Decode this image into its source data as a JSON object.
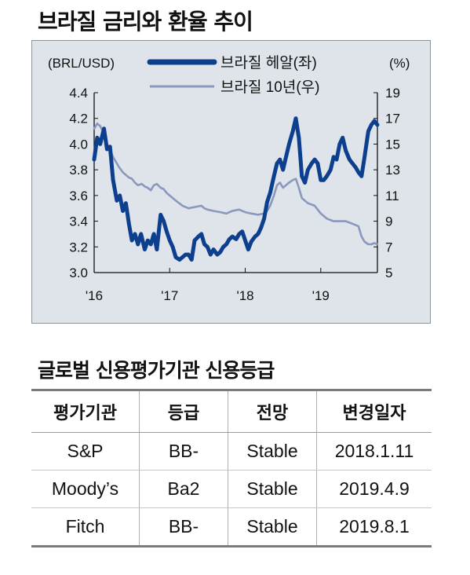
{
  "title": "브라질 금리와 환율 추이",
  "chart_data": {
    "type": "line",
    "left_axis_unit": "(BRL/USD)",
    "right_axis_unit": "(%)",
    "y_left_ticks": [
      "4.4",
      "4.2",
      "4.0",
      "3.8",
      "3.6",
      "3.4",
      "3.2",
      "3.0"
    ],
    "y_right_ticks": [
      "19",
      "17",
      "15",
      "13",
      "11",
      "9",
      "7",
      "5"
    ],
    "x_ticks": [
      "'16",
      "'17",
      "'18",
      "'19"
    ],
    "ylim_left": [
      3.0,
      4.4
    ],
    "ylim_right": [
      5,
      19
    ],
    "xlim": [
      2016.0,
      2019.75
    ],
    "series": [
      {
        "name": "브라질 헤알(좌)",
        "axis": "left",
        "color": "#0d3f8f",
        "points": [
          [
            2016.0,
            3.88
          ],
          [
            2016.04,
            4.05
          ],
          [
            2016.08,
            4.0
          ],
          [
            2016.13,
            4.12
          ],
          [
            2016.17,
            3.96
          ],
          [
            2016.21,
            3.98
          ],
          [
            2016.25,
            3.72
          ],
          [
            2016.3,
            3.56
          ],
          [
            2016.34,
            3.6
          ],
          [
            2016.38,
            3.48
          ],
          [
            2016.42,
            3.54
          ],
          [
            2016.46,
            3.38
          ],
          [
            2016.5,
            3.25
          ],
          [
            2016.54,
            3.3
          ],
          [
            2016.58,
            3.22
          ],
          [
            2016.62,
            3.3
          ],
          [
            2016.67,
            3.18
          ],
          [
            2016.71,
            3.25
          ],
          [
            2016.75,
            3.22
          ],
          [
            2016.79,
            3.3
          ],
          [
            2016.83,
            3.18
          ],
          [
            2016.88,
            3.45
          ],
          [
            2016.92,
            3.4
          ],
          [
            2016.96,
            3.32
          ],
          [
            2017.0,
            3.25
          ],
          [
            2017.04,
            3.2
          ],
          [
            2017.08,
            3.12
          ],
          [
            2017.13,
            3.1
          ],
          [
            2017.17,
            3.12
          ],
          [
            2017.21,
            3.14
          ],
          [
            2017.25,
            3.14
          ],
          [
            2017.29,
            3.1
          ],
          [
            2017.33,
            3.25
          ],
          [
            2017.38,
            3.28
          ],
          [
            2017.42,
            3.3
          ],
          [
            2017.46,
            3.22
          ],
          [
            2017.5,
            3.2
          ],
          [
            2017.54,
            3.14
          ],
          [
            2017.58,
            3.18
          ],
          [
            2017.63,
            3.14
          ],
          [
            2017.67,
            3.16
          ],
          [
            2017.71,
            3.2
          ],
          [
            2017.75,
            3.22
          ],
          [
            2017.79,
            3.26
          ],
          [
            2017.83,
            3.28
          ],
          [
            2017.88,
            3.26
          ],
          [
            2017.92,
            3.3
          ],
          [
            2017.96,
            3.32
          ],
          [
            2018.0,
            3.25
          ],
          [
            2018.04,
            3.18
          ],
          [
            2018.08,
            3.24
          ],
          [
            2018.13,
            3.28
          ],
          [
            2018.17,
            3.3
          ],
          [
            2018.21,
            3.35
          ],
          [
            2018.25,
            3.42
          ],
          [
            2018.29,
            3.55
          ],
          [
            2018.33,
            3.62
          ],
          [
            2018.38,
            3.75
          ],
          [
            2018.42,
            3.85
          ],
          [
            2018.46,
            3.88
          ],
          [
            2018.5,
            3.8
          ],
          [
            2018.54,
            3.9
          ],
          [
            2018.58,
            4.0
          ],
          [
            2018.63,
            4.1
          ],
          [
            2018.67,
            4.2
          ],
          [
            2018.71,
            4.05
          ],
          [
            2018.75,
            3.75
          ],
          [
            2018.79,
            3.7
          ],
          [
            2018.83,
            3.8
          ],
          [
            2018.88,
            3.85
          ],
          [
            2018.92,
            3.88
          ],
          [
            2018.96,
            3.85
          ],
          [
            2019.0,
            3.72
          ],
          [
            2019.04,
            3.72
          ],
          [
            2019.08,
            3.75
          ],
          [
            2019.13,
            3.8
          ],
          [
            2019.17,
            3.9
          ],
          [
            2019.21,
            3.88
          ],
          [
            2019.25,
            4.0
          ],
          [
            2019.29,
            4.05
          ],
          [
            2019.33,
            3.95
          ],
          [
            2019.38,
            3.88
          ],
          [
            2019.42,
            3.85
          ],
          [
            2019.46,
            3.82
          ],
          [
            2019.5,
            3.78
          ],
          [
            2019.54,
            3.75
          ],
          [
            2019.58,
            3.9
          ],
          [
            2019.63,
            4.1
          ],
          [
            2019.67,
            4.15
          ],
          [
            2019.71,
            4.18
          ],
          [
            2019.75,
            4.15
          ]
        ]
      },
      {
        "name": "브라질 10년(우)",
        "axis": "right",
        "color": "#8a98bf",
        "points": [
          [
            2016.0,
            16.2
          ],
          [
            2016.04,
            16.6
          ],
          [
            2016.08,
            16.4
          ],
          [
            2016.13,
            15.8
          ],
          [
            2016.17,
            15.0
          ],
          [
            2016.21,
            14.6
          ],
          [
            2016.25,
            14.0
          ],
          [
            2016.29,
            13.6
          ],
          [
            2016.33,
            13.2
          ],
          [
            2016.38,
            12.8
          ],
          [
            2016.42,
            12.6
          ],
          [
            2016.46,
            12.4
          ],
          [
            2016.5,
            12.3
          ],
          [
            2016.54,
            12.0
          ],
          [
            2016.58,
            11.8
          ],
          [
            2016.63,
            11.9
          ],
          [
            2016.67,
            11.7
          ],
          [
            2016.71,
            11.6
          ],
          [
            2016.75,
            11.4
          ],
          [
            2016.79,
            11.8
          ],
          [
            2016.83,
            11.9
          ],
          [
            2016.88,
            11.6
          ],
          [
            2016.92,
            11.5
          ],
          [
            2016.96,
            11.2
          ],
          [
            2017.0,
            11.0
          ],
          [
            2017.08,
            10.6
          ],
          [
            2017.17,
            10.2
          ],
          [
            2017.25,
            10.0
          ],
          [
            2017.33,
            10.1
          ],
          [
            2017.42,
            10.2
          ],
          [
            2017.46,
            10.0
          ],
          [
            2017.5,
            9.9
          ],
          [
            2017.58,
            9.8
          ],
          [
            2017.67,
            9.7
          ],
          [
            2017.75,
            9.6
          ],
          [
            2017.83,
            9.8
          ],
          [
            2017.92,
            9.9
          ],
          [
            2018.0,
            9.7
          ],
          [
            2018.08,
            9.6
          ],
          [
            2018.17,
            9.5
          ],
          [
            2018.25,
            9.6
          ],
          [
            2018.29,
            9.8
          ],
          [
            2018.33,
            10.2
          ],
          [
            2018.38,
            11.0
          ],
          [
            2018.42,
            11.8
          ],
          [
            2018.46,
            12.0
          ],
          [
            2018.5,
            11.6
          ],
          [
            2018.54,
            11.8
          ],
          [
            2018.58,
            12.0
          ],
          [
            2018.63,
            12.2
          ],
          [
            2018.67,
            12.3
          ],
          [
            2018.71,
            11.6
          ],
          [
            2018.75,
            10.8
          ],
          [
            2018.83,
            10.4
          ],
          [
            2018.92,
            10.2
          ],
          [
            2019.0,
            9.6
          ],
          [
            2019.08,
            9.2
          ],
          [
            2019.17,
            9.0
          ],
          [
            2019.25,
            9.0
          ],
          [
            2019.33,
            9.0
          ],
          [
            2019.42,
            8.8
          ],
          [
            2019.5,
            8.6
          ],
          [
            2019.54,
            7.8
          ],
          [
            2019.58,
            7.4
          ],
          [
            2019.63,
            7.2
          ],
          [
            2019.67,
            7.2
          ],
          [
            2019.71,
            7.3
          ],
          [
            2019.75,
            7.2
          ]
        ]
      }
    ]
  },
  "table": {
    "title": "글로벌 신용평가기관 신용등급",
    "headers": [
      "평가기관",
      "등급",
      "전망",
      "변경일자"
    ],
    "rows": [
      [
        "S&P",
        "BB-",
        "Stable",
        "2018.1.11"
      ],
      [
        "Moody’s",
        "Ba2",
        "Stable",
        "2019.4.9"
      ],
      [
        "Fitch",
        "BB-",
        "Stable",
        "2019.8.1"
      ]
    ]
  }
}
